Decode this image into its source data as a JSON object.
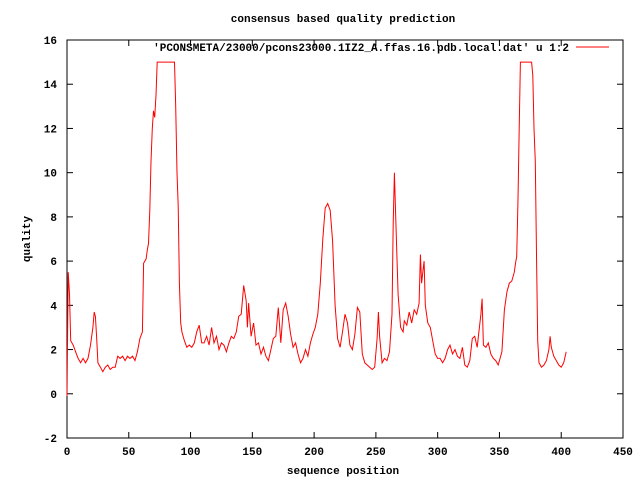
{
  "chart_data": {
    "type": "line",
    "title": "consensus based quality prediction",
    "xlabel": "sequence position",
    "ylabel": "quality",
    "xlim": [
      0,
      450
    ],
    "ylim": [
      -2,
      16
    ],
    "xticks": [
      0,
      50,
      100,
      150,
      200,
      250,
      300,
      350,
      400,
      450
    ],
    "yticks": [
      -2,
      0,
      2,
      4,
      6,
      8,
      10,
      12,
      14,
      16
    ],
    "grid": false,
    "legend_position": "top-right",
    "series": [
      {
        "name": "'PCONSMETA/23000/pcons23000.1IZ2_A.ffas.16.pdb.local.dat' u 1:2",
        "color": "#ff0000",
        "x": [
          0,
          1,
          2,
          3,
          5,
          7,
          9,
          11,
          13,
          15,
          17,
          19,
          21,
          22,
          23,
          24,
          25,
          27,
          29,
          31,
          33,
          35,
          37,
          39,
          41,
          43,
          45,
          47,
          49,
          51,
          53,
          55,
          57,
          59,
          61,
          62,
          64,
          65,
          66,
          67,
          68,
          69,
          70,
          71,
          72,
          73,
          80,
          87,
          88,
          89,
          90,
          91,
          92,
          93,
          95,
          97,
          99,
          101,
          103,
          105,
          107,
          109,
          111,
          113,
          115,
          117,
          119,
          121,
          123,
          125,
          127,
          129,
          131,
          133,
          135,
          137,
          139,
          141,
          143,
          145,
          146,
          147,
          149,
          151,
          153,
          155,
          157,
          159,
          161,
          163,
          165,
          167,
          169,
          171,
          173,
          175,
          177,
          179,
          181,
          183,
          185,
          187,
          189,
          191,
          193,
          195,
          197,
          199,
          201,
          203,
          205,
          207,
          209,
          211,
          213,
          215,
          217,
          219,
          221,
          223,
          225,
          227,
          229,
          231,
          233,
          235,
          237,
          239,
          241,
          243,
          245,
          247,
          249,
          251,
          252,
          253,
          255,
          257,
          259,
          261,
          263,
          264,
          265,
          266,
          268,
          270,
          272,
          273,
          275,
          277,
          279,
          281,
          283,
          285,
          286,
          287,
          288,
          289,
          290,
          292,
          294,
          296,
          298,
          300,
          302,
          304,
          306,
          308,
          310,
          312,
          314,
          316,
          318,
          320,
          322,
          324,
          326,
          328,
          330,
          332,
          333,
          335,
          336,
          337,
          339,
          341,
          343,
          345,
          347,
          349,
          352,
          354,
          356,
          358,
          360,
          362,
          363,
          364,
          365,
          366,
          367,
          372,
          376,
          377,
          378,
          379,
          380,
          381,
          382,
          384,
          386,
          388,
          390,
          391,
          392,
          394,
          396,
          398,
          400,
          402,
          404
        ],
        "y": [
          -0.1,
          5.5,
          4.5,
          2.4,
          2.2,
          1.9,
          1.6,
          1.4,
          1.6,
          1.4,
          1.6,
          2.2,
          3.0,
          3.7,
          3.5,
          2.5,
          1.4,
          1.2,
          1.0,
          1.2,
          1.3,
          1.1,
          1.2,
          1.2,
          1.7,
          1.6,
          1.7,
          1.5,
          1.7,
          1.6,
          1.7,
          1.5,
          1.9,
          2.5,
          2.8,
          5.9,
          6.1,
          6.5,
          6.8,
          8.3,
          10.5,
          12.0,
          12.8,
          12.5,
          13.5,
          15,
          15,
          15,
          13,
          10,
          8.5,
          5.0,
          3.2,
          2.8,
          2.4,
          2.1,
          2.2,
          2.1,
          2.3,
          2.8,
          3.1,
          2.3,
          2.3,
          2.6,
          2.2,
          3.0,
          2.3,
          2.6,
          2.0,
          2.3,
          2.2,
          1.9,
          2.3,
          2.6,
          2.5,
          2.8,
          3.5,
          3.6,
          4.9,
          4.2,
          3.0,
          4.1,
          2.6,
          3.2,
          2.2,
          2.3,
          1.8,
          2.1,
          1.7,
          1.5,
          2.0,
          2.5,
          2.6,
          3.9,
          2.3,
          3.8,
          4.1,
          3.5,
          2.7,
          2.1,
          2.3,
          1.8,
          1.4,
          1.6,
          2.0,
          1.7,
          2.3,
          2.7,
          3.0,
          3.6,
          5.0,
          7.0,
          8.4,
          8.6,
          8.3,
          6.9,
          4.0,
          2.5,
          2.1,
          2.8,
          3.6,
          3.2,
          2.2,
          2.0,
          2.7,
          3.9,
          3.7,
          1.8,
          1.4,
          1.3,
          1.2,
          1.1,
          1.2,
          2.5,
          3.7,
          2.6,
          1.4,
          1.6,
          1.5,
          1.9,
          3.6,
          7.7,
          10.0,
          8.0,
          4.5,
          3.0,
          2.8,
          3.3,
          3.1,
          3.7,
          3.2,
          3.8,
          3.6,
          4.1,
          6.3,
          5.0,
          5.5,
          6.0,
          4.0,
          3.2,
          3.0,
          2.4,
          1.8,
          1.6,
          1.6,
          1.4,
          1.6,
          2.0,
          2.2,
          1.8,
          2.0,
          1.7,
          1.6,
          2.1,
          1.3,
          1.2,
          1.5,
          2.5,
          2.6,
          2.1,
          2.6,
          3.6,
          4.3,
          2.2,
          2.1,
          2.3,
          1.8,
          1.6,
          1.5,
          1.3,
          1.9,
          3.8,
          4.6,
          5.0,
          5.1,
          5.5,
          5.9,
          6.2,
          8.8,
          12.0,
          15,
          15,
          15,
          14.4,
          12,
          10.5,
          6.3,
          2.4,
          1.4,
          1.2,
          1.3,
          1.5,
          2.0,
          2.6,
          2.1,
          1.7,
          1.5,
          1.3,
          1.2,
          1.4,
          1.9
        ]
      }
    ]
  }
}
